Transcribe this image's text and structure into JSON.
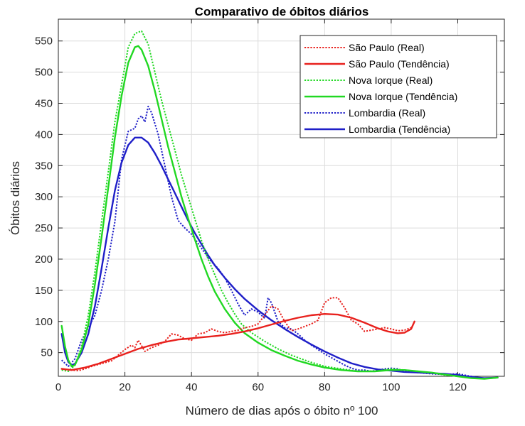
{
  "chart_data": {
    "type": "line",
    "title": "Comparativo de óbitos diários",
    "xlabel": "Número de dias após o óbito nº 100",
    "ylabel": "Óbitos diários",
    "xlim": [
      0,
      134
    ],
    "ylim": [
      12,
      585
    ],
    "x_ticks": [
      0,
      20,
      40,
      60,
      80,
      100,
      120
    ],
    "y_ticks": [
      50,
      100,
      150,
      200,
      250,
      300,
      350,
      400,
      450,
      500,
      550
    ],
    "grid": true,
    "legend_position": "top-right",
    "series": [
      {
        "name": "São Paulo (Real)",
        "color": "#e8211d",
        "style": "dotted",
        "points": [
          [
            1,
            24
          ],
          [
            4,
            22
          ],
          [
            6,
            21
          ],
          [
            8,
            24
          ],
          [
            10,
            28
          ],
          [
            12,
            31
          ],
          [
            14,
            34
          ],
          [
            16,
            37
          ],
          [
            18,
            46
          ],
          [
            20,
            55
          ],
          [
            22,
            62
          ],
          [
            23,
            58
          ],
          [
            24,
            70
          ],
          [
            26,
            52
          ],
          [
            28,
            58
          ],
          [
            30,
            62
          ],
          [
            32,
            68
          ],
          [
            34,
            80
          ],
          [
            36,
            78
          ],
          [
            38,
            72
          ],
          [
            40,
            70
          ],
          [
            42,
            80
          ],
          [
            44,
            82
          ],
          [
            46,
            88
          ],
          [
            48,
            84
          ],
          [
            50,
            82
          ],
          [
            52,
            84
          ],
          [
            54,
            86
          ],
          [
            56,
            90
          ],
          [
            58,
            92
          ],
          [
            60,
            96
          ],
          [
            62,
            110
          ],
          [
            64,
            125
          ],
          [
            66,
            120
          ],
          [
            68,
            100
          ],
          [
            70,
            85
          ],
          [
            72,
            88
          ],
          [
            74,
            92
          ],
          [
            76,
            96
          ],
          [
            78,
            102
          ],
          [
            80,
            130
          ],
          [
            82,
            138
          ],
          [
            84,
            138
          ],
          [
            86,
            122
          ],
          [
            88,
            102
          ],
          [
            90,
            96
          ],
          [
            92,
            84
          ],
          [
            94,
            86
          ],
          [
            96,
            88
          ],
          [
            98,
            90
          ],
          [
            100,
            88
          ],
          [
            102,
            85
          ],
          [
            104,
            86
          ],
          [
            106,
            90
          ]
        ]
      },
      {
        "name": "São Paulo (Tendência)",
        "color": "#e8211d",
        "style": "solid",
        "points": [
          [
            1,
            24
          ],
          [
            4,
            22
          ],
          [
            8,
            26
          ],
          [
            12,
            32
          ],
          [
            16,
            40
          ],
          [
            20,
            48
          ],
          [
            24,
            56
          ],
          [
            28,
            62
          ],
          [
            32,
            67
          ],
          [
            36,
            71
          ],
          [
            40,
            73
          ],
          [
            44,
            75
          ],
          [
            48,
            77
          ],
          [
            52,
            80
          ],
          [
            56,
            84
          ],
          [
            60,
            89
          ],
          [
            64,
            95
          ],
          [
            68,
            101
          ],
          [
            72,
            106
          ],
          [
            76,
            110
          ],
          [
            80,
            112
          ],
          [
            84,
            111
          ],
          [
            88,
            106
          ],
          [
            92,
            98
          ],
          [
            96,
            89
          ],
          [
            99,
            84
          ],
          [
            102,
            81
          ],
          [
            104,
            82
          ],
          [
            106,
            88
          ],
          [
            107,
            100
          ]
        ]
      },
      {
        "name": "Nova Iorque (Real)",
        "color": "#21d822",
        "style": "dotted",
        "points": [
          [
            1,
            22
          ],
          [
            3,
            20
          ],
          [
            5,
            30
          ],
          [
            7,
            60
          ],
          [
            9,
            110
          ],
          [
            11,
            180
          ],
          [
            13,
            260
          ],
          [
            15,
            340
          ],
          [
            17,
            420
          ],
          [
            19,
            480
          ],
          [
            21,
            540
          ],
          [
            23,
            562
          ],
          [
            25,
            566
          ],
          [
            27,
            545
          ],
          [
            29,
            500
          ],
          [
            31,
            455
          ],
          [
            33,
            415
          ],
          [
            35,
            375
          ],
          [
            37,
            335
          ],
          [
            39,
            300
          ],
          [
            41,
            265
          ],
          [
            43,
            230
          ],
          [
            45,
            200
          ],
          [
            47,
            175
          ],
          [
            49,
            150
          ],
          [
            51,
            130
          ],
          [
            53,
            112
          ],
          [
            55,
            96
          ],
          [
            58,
            82
          ],
          [
            62,
            68
          ],
          [
            66,
            56
          ],
          [
            70,
            46
          ],
          [
            75,
            36
          ],
          [
            80,
            28
          ],
          [
            85,
            24
          ],
          [
            90,
            20
          ],
          [
            95,
            20
          ],
          [
            100,
            24
          ],
          [
            104,
            22
          ],
          [
            108,
            20
          ],
          [
            112,
            18
          ],
          [
            116,
            14
          ],
          [
            120,
            12
          ]
        ]
      },
      {
        "name": "Nova Iorque (Tendência)",
        "color": "#21d822",
        "style": "solid",
        "points": [
          [
            1,
            93
          ],
          [
            2,
            60
          ],
          [
            3,
            38
          ],
          [
            4,
            28
          ],
          [
            5,
            30
          ],
          [
            7,
            55
          ],
          [
            9,
            95
          ],
          [
            11,
            160
          ],
          [
            13,
            235
          ],
          [
            15,
            315
          ],
          [
            17,
            395
          ],
          [
            19,
            462
          ],
          [
            21,
            515
          ],
          [
            23,
            540
          ],
          [
            24,
            542
          ],
          [
            25,
            536
          ],
          [
            27,
            510
          ],
          [
            29,
            470
          ],
          [
            31,
            425
          ],
          [
            33,
            380
          ],
          [
            35,
            340
          ],
          [
            37,
            300
          ],
          [
            39,
            265
          ],
          [
            41,
            232
          ],
          [
            43,
            200
          ],
          [
            45,
            172
          ],
          [
            47,
            148
          ],
          [
            50,
            120
          ],
          [
            53,
            98
          ],
          [
            56,
            81
          ],
          [
            60,
            66
          ],
          [
            64,
            54
          ],
          [
            68,
            45
          ],
          [
            72,
            37
          ],
          [
            76,
            31
          ],
          [
            80,
            26
          ],
          [
            85,
            22
          ],
          [
            90,
            20
          ],
          [
            95,
            20
          ],
          [
            100,
            22
          ],
          [
            104,
            22
          ],
          [
            108,
            20
          ],
          [
            112,
            18
          ],
          [
            116,
            15
          ],
          [
            120,
            12
          ],
          [
            124,
            9
          ],
          [
            128,
            8
          ],
          [
            132,
            10
          ]
        ]
      },
      {
        "name": "Lombardia (Real)",
        "color": "#1f1fc8",
        "style": "dotted",
        "points": [
          [
            1,
            38
          ],
          [
            3,
            28
          ],
          [
            5,
            40
          ],
          [
            7,
            70
          ],
          [
            9,
            90
          ],
          [
            11,
            110
          ],
          [
            13,
            150
          ],
          [
            15,
            200
          ],
          [
            17,
            260
          ],
          [
            19,
            360
          ],
          [
            21,
            405
          ],
          [
            23,
            410
          ],
          [
            24,
            425
          ],
          [
            25,
            430
          ],
          [
            26,
            420
          ],
          [
            27,
            445
          ],
          [
            28,
            435
          ],
          [
            30,
            400
          ],
          [
            32,
            350
          ],
          [
            34,
            300
          ],
          [
            36,
            262
          ],
          [
            38,
            250
          ],
          [
            40,
            240
          ],
          [
            42,
            225
          ],
          [
            44,
            210
          ],
          [
            46,
            196
          ],
          [
            48,
            185
          ],
          [
            50,
            170
          ],
          [
            52,
            150
          ],
          [
            54,
            128
          ],
          [
            56,
            110
          ],
          [
            58,
            120
          ],
          [
            60,
            115
          ],
          [
            62,
            105
          ],
          [
            63,
            138
          ],
          [
            64,
            130
          ],
          [
            66,
            100
          ],
          [
            68,
            90
          ],
          [
            70,
            88
          ],
          [
            72,
            80
          ],
          [
            74,
            70
          ],
          [
            76,
            62
          ],
          [
            78,
            55
          ],
          [
            80,
            48
          ],
          [
            82,
            42
          ],
          [
            84,
            36
          ],
          [
            86,
            30
          ],
          [
            88,
            25
          ],
          [
            90,
            22
          ],
          [
            92,
            22
          ],
          [
            94,
            20
          ],
          [
            96,
            22
          ],
          [
            98,
            24
          ],
          [
            100,
            25
          ],
          [
            102,
            24
          ],
          [
            104,
            20
          ],
          [
            108,
            18
          ],
          [
            112,
            16
          ],
          [
            116,
            15
          ],
          [
            120,
            16
          ],
          [
            124,
            12
          ],
          [
            128,
            8
          ],
          [
            132,
            10
          ]
        ]
      },
      {
        "name": "Lombardia (Tendência)",
        "color": "#1f1fc8",
        "style": "solid",
        "points": [
          [
            1,
            80
          ],
          [
            2,
            50
          ],
          [
            3,
            35
          ],
          [
            4,
            30
          ],
          [
            5,
            32
          ],
          [
            7,
            50
          ],
          [
            9,
            80
          ],
          [
            11,
            125
          ],
          [
            13,
            185
          ],
          [
            15,
            250
          ],
          [
            17,
            310
          ],
          [
            19,
            355
          ],
          [
            21,
            383
          ],
          [
            23,
            395
          ],
          [
            25,
            395
          ],
          [
            27,
            387
          ],
          [
            29,
            370
          ],
          [
            31,
            350
          ],
          [
            33,
            328
          ],
          [
            35,
            306
          ],
          [
            37,
            284
          ],
          [
            39,
            262
          ],
          [
            41,
            242
          ],
          [
            43,
            224
          ],
          [
            45,
            206
          ],
          [
            47,
            190
          ],
          [
            50,
            170
          ],
          [
            53,
            152
          ],
          [
            56,
            136
          ],
          [
            60,
            118
          ],
          [
            64,
            102
          ],
          [
            68,
            88
          ],
          [
            72,
            75
          ],
          [
            76,
            63
          ],
          [
            80,
            52
          ],
          [
            84,
            42
          ],
          [
            88,
            33
          ],
          [
            92,
            27
          ],
          [
            96,
            23
          ],
          [
            100,
            21
          ],
          [
            104,
            19
          ],
          [
            108,
            18
          ],
          [
            112,
            17
          ],
          [
            116,
            16
          ],
          [
            120,
            14
          ],
          [
            124,
            11
          ],
          [
            128,
            9
          ],
          [
            132,
            10
          ]
        ]
      }
    ]
  }
}
